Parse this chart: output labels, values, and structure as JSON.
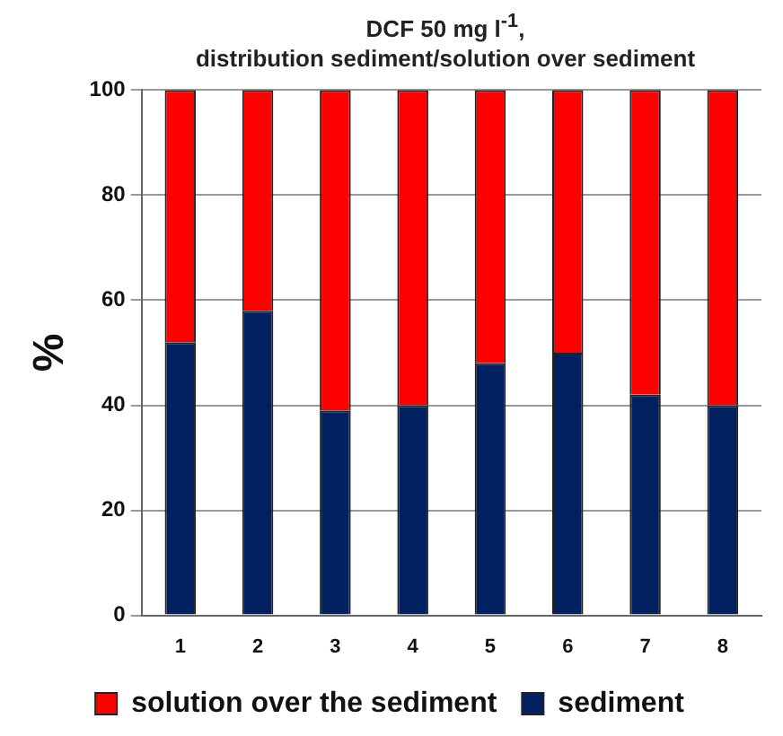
{
  "chart_data": {
    "type": "bar",
    "title": "DCF 50 mg l$^{-1}$,",
    "subtitle": "distribution  sediment/solution over sediment",
    "ylabel": "%",
    "categories": [
      "1",
      "2",
      "3",
      "4",
      "5",
      "6",
      "7",
      "8"
    ],
    "series": [
      {
        "name": "sediment",
        "color": "#002060",
        "values": [
          52,
          58,
          39,
          40,
          48,
          50,
          42,
          40
        ]
      },
      {
        "name": "solution over the sediment",
        "color": "#ff0000",
        "values": [
          48,
          42,
          61,
          60,
          52,
          50,
          58,
          60
        ]
      }
    ],
    "stacked": true,
    "ylim": [
      0,
      100
    ],
    "yticks": [
      0,
      20,
      40,
      60,
      80,
      100
    ],
    "grid": "y",
    "legend": "bottom"
  }
}
